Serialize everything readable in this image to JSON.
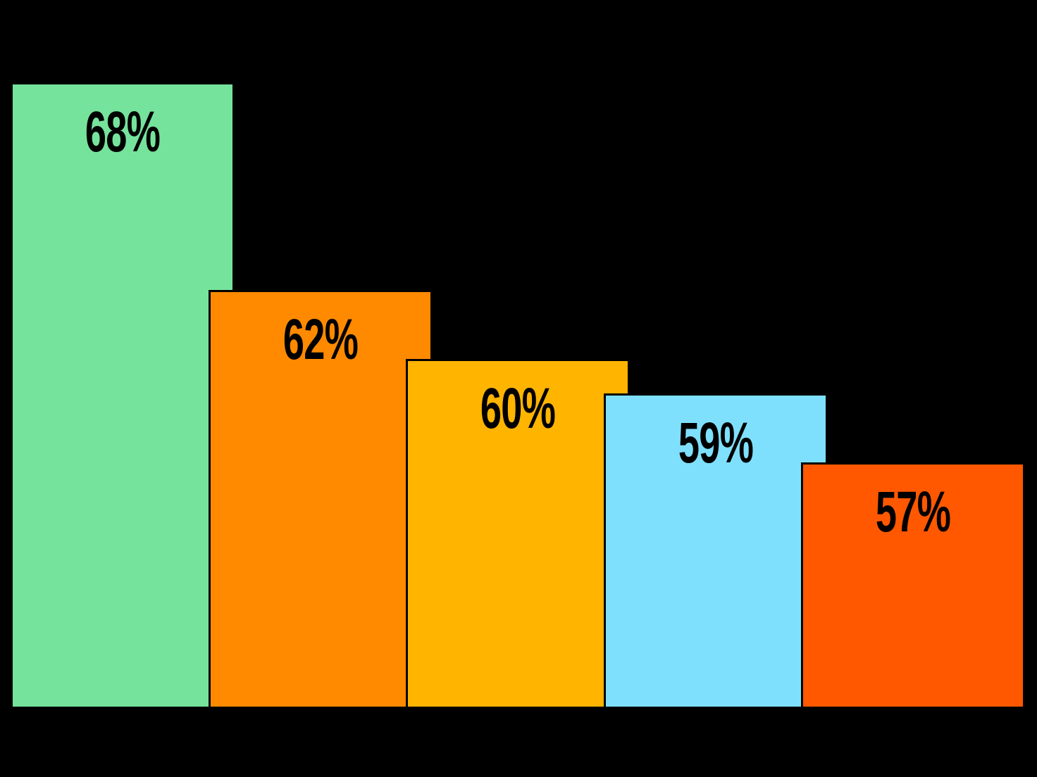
{
  "chart_data": {
    "type": "bar",
    "title": "",
    "xlabel": "",
    "ylabel": "",
    "categories": [
      "",
      "",
      "",
      "",
      ""
    ],
    "values": [
      68,
      62,
      60,
      59,
      57
    ],
    "data_labels": [
      "68%",
      "62%",
      "60%",
      "59%",
      "57%"
    ],
    "bar_colors": [
      "#75E39C",
      "#FF8A00",
      "#FFB400",
      "#7FE0FD",
      "#FF5800"
    ],
    "baseline_value": 50,
    "ylim": [
      50,
      70
    ],
    "grid": false,
    "legend": "none",
    "axes_visible": false,
    "background_color": "#000000",
    "data_label_color": "#000000"
  }
}
